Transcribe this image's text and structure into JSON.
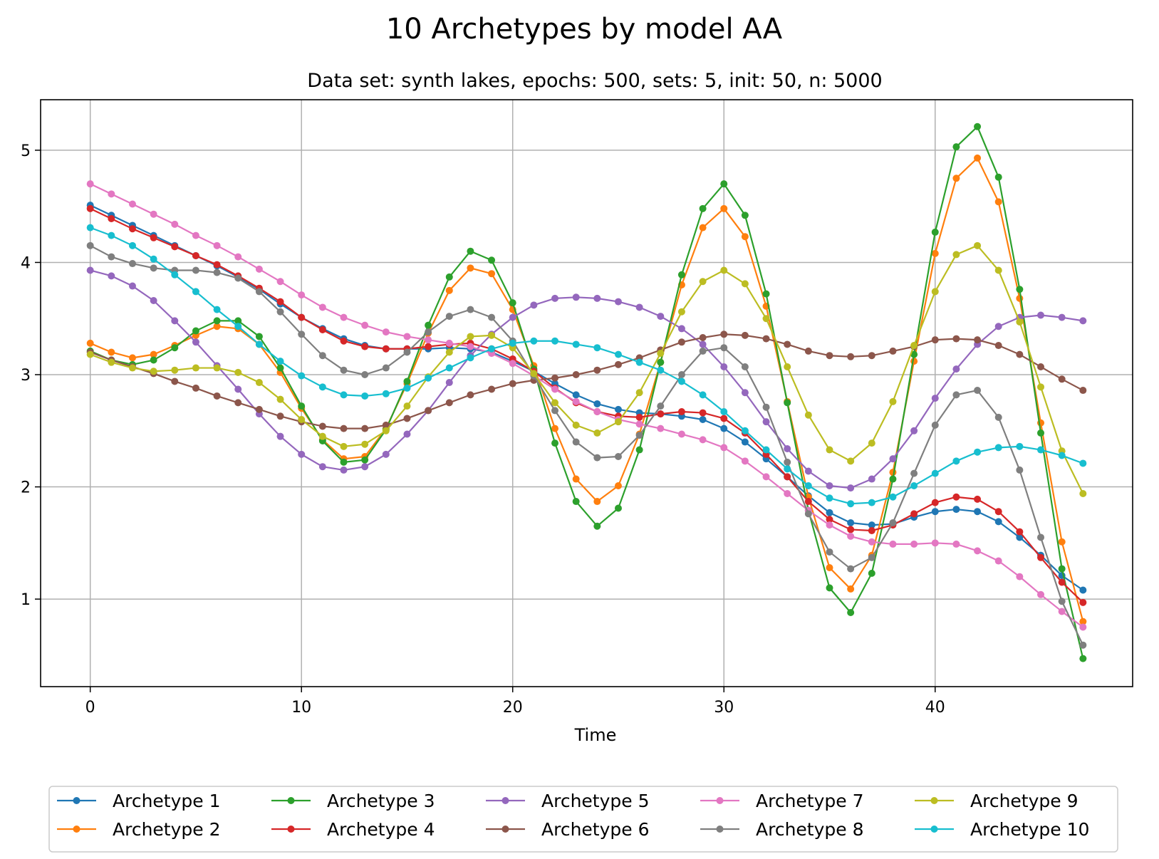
{
  "chart_data": {
    "type": "line",
    "title": "10 Archetypes by model AA",
    "subtitle": "Data set: synth lakes, epochs: 500, sets: 5, init: 50, n: 5000",
    "xlabel": "Time",
    "ylabel": "",
    "xlim": [
      -2.35,
      49.35
    ],
    "ylim": [
      0.22,
      5.45
    ],
    "xticks": [
      0,
      10,
      20,
      30,
      40
    ],
    "yticks": [
      1,
      2,
      3,
      4,
      5
    ],
    "grid": true,
    "legend": {
      "position": "bottom",
      "columns": 5
    },
    "x": [
      0,
      1,
      2,
      3,
      4,
      5,
      6,
      7,
      8,
      9,
      10,
      11,
      12,
      13,
      14,
      15,
      16,
      17,
      18,
      19,
      20,
      21,
      22,
      23,
      24,
      25,
      26,
      27,
      28,
      29,
      30,
      31,
      32,
      33,
      34,
      35,
      36,
      37,
      38,
      39,
      40,
      41,
      42,
      43,
      44,
      45,
      46,
      47
    ],
    "series": [
      {
        "name": "Archetype 1",
        "color": "#1f77b4",
        "values": [
          4.51,
          4.42,
          4.33,
          4.24,
          4.15,
          4.06,
          3.97,
          3.87,
          3.76,
          3.63,
          3.51,
          3.41,
          3.32,
          3.26,
          3.23,
          3.23,
          3.23,
          3.24,
          3.23,
          3.2,
          3.12,
          3.03,
          2.92,
          2.82,
          2.74,
          2.69,
          2.66,
          2.65,
          2.63,
          2.6,
          2.52,
          2.4,
          2.25,
          2.09,
          1.92,
          1.77,
          1.68,
          1.66,
          1.67,
          1.73,
          1.78,
          1.8,
          1.78,
          1.69,
          1.55,
          1.39,
          1.21,
          1.08
        ]
      },
      {
        "name": "Archetype 2",
        "color": "#ff7f0e",
        "values": [
          3.28,
          3.2,
          3.15,
          3.18,
          3.26,
          3.35,
          3.43,
          3.41,
          3.27,
          3.02,
          2.7,
          2.42,
          2.25,
          2.27,
          2.52,
          2.92,
          3.37,
          3.75,
          3.95,
          3.9,
          3.58,
          3.08,
          2.52,
          2.07,
          1.87,
          2.01,
          2.47,
          3.11,
          3.8,
          4.31,
          4.48,
          4.23,
          3.61,
          2.76,
          1.91,
          1.28,
          1.09,
          1.39,
          2.13,
          3.12,
          4.08,
          4.75,
          4.93,
          4.54,
          3.68,
          2.57,
          1.51,
          0.8
        ]
      },
      {
        "name": "Archetype 3",
        "color": "#2ca02c",
        "values": [
          3.21,
          3.13,
          3.09,
          3.13,
          3.24,
          3.39,
          3.48,
          3.48,
          3.34,
          3.06,
          2.72,
          2.41,
          2.22,
          2.24,
          2.51,
          2.94,
          3.44,
          3.87,
          4.1,
          4.02,
          3.64,
          3.05,
          2.39,
          1.87,
          1.65,
          1.81,
          2.33,
          3.11,
          3.89,
          4.48,
          4.7,
          4.42,
          3.72,
          2.75,
          1.79,
          1.1,
          0.88,
          1.23,
          2.07,
          3.18,
          4.27,
          5.03,
          5.21,
          4.76,
          3.76,
          2.48,
          1.27,
          0.47
        ]
      },
      {
        "name": "Archetype 4",
        "color": "#d62728",
        "values": [
          4.48,
          4.39,
          4.3,
          4.22,
          4.14,
          4.06,
          3.98,
          3.88,
          3.77,
          3.65,
          3.51,
          3.4,
          3.3,
          3.25,
          3.23,
          3.23,
          3.25,
          3.27,
          3.28,
          3.23,
          3.14,
          3.03,
          2.88,
          2.75,
          2.67,
          2.63,
          2.62,
          2.65,
          2.67,
          2.66,
          2.61,
          2.48,
          2.29,
          2.09,
          1.87,
          1.71,
          1.62,
          1.61,
          1.66,
          1.76,
          1.86,
          1.91,
          1.89,
          1.78,
          1.6,
          1.37,
          1.15,
          0.97
        ]
      },
      {
        "name": "Archetype 5",
        "color": "#9467bd",
        "values": [
          3.93,
          3.88,
          3.79,
          3.66,
          3.48,
          3.29,
          3.08,
          2.87,
          2.65,
          2.45,
          2.29,
          2.18,
          2.15,
          2.18,
          2.29,
          2.47,
          2.68,
          2.93,
          3.17,
          3.36,
          3.51,
          3.62,
          3.68,
          3.69,
          3.68,
          3.65,
          3.6,
          3.52,
          3.41,
          3.27,
          3.07,
          2.84,
          2.58,
          2.34,
          2.14,
          2.01,
          1.99,
          2.07,
          2.25,
          2.5,
          2.79,
          3.05,
          3.27,
          3.43,
          3.51,
          3.53,
          3.51,
          3.48
        ]
      },
      {
        "name": "Archetype 6",
        "color": "#8c564b",
        "values": [
          3.2,
          3.13,
          3.07,
          3.01,
          2.94,
          2.88,
          2.81,
          2.75,
          2.69,
          2.63,
          2.58,
          2.54,
          2.52,
          2.52,
          2.55,
          2.61,
          2.68,
          2.75,
          2.82,
          2.87,
          2.92,
          2.95,
          2.97,
          3.0,
          3.04,
          3.09,
          3.15,
          3.22,
          3.29,
          3.33,
          3.36,
          3.35,
          3.32,
          3.27,
          3.21,
          3.17,
          3.16,
          3.17,
          3.21,
          3.25,
          3.31,
          3.32,
          3.31,
          3.26,
          3.18,
          3.07,
          2.96,
          2.86
        ]
      },
      {
        "name": "Archetype 7",
        "color": "#e377c2",
        "values": [
          4.7,
          4.61,
          4.52,
          4.43,
          4.34,
          4.24,
          4.15,
          4.05,
          3.94,
          3.83,
          3.71,
          3.6,
          3.51,
          3.44,
          3.38,
          3.34,
          3.31,
          3.28,
          3.25,
          3.19,
          3.1,
          2.99,
          2.87,
          2.76,
          2.67,
          2.6,
          2.56,
          2.52,
          2.47,
          2.42,
          2.35,
          2.23,
          2.09,
          1.94,
          1.79,
          1.66,
          1.56,
          1.51,
          1.49,
          1.49,
          1.5,
          1.49,
          1.43,
          1.34,
          1.2,
          1.04,
          0.89,
          0.75
        ]
      },
      {
        "name": "Archetype 8",
        "color": "#7f7f7f",
        "values": [
          4.15,
          4.05,
          3.99,
          3.95,
          3.93,
          3.93,
          3.91,
          3.86,
          3.74,
          3.56,
          3.36,
          3.17,
          3.04,
          3.0,
          3.06,
          3.2,
          3.38,
          3.52,
          3.58,
          3.51,
          3.3,
          2.99,
          2.68,
          2.4,
          2.26,
          2.27,
          2.46,
          2.72,
          3.0,
          3.21,
          3.24,
          3.07,
          2.71,
          2.22,
          1.76,
          1.42,
          1.27,
          1.37,
          1.68,
          2.12,
          2.55,
          2.82,
          2.86,
          2.62,
          2.15,
          1.55,
          0.98,
          0.59
        ]
      },
      {
        "name": "Archetype 9",
        "color": "#bcbd22",
        "values": [
          3.18,
          3.11,
          3.06,
          3.03,
          3.04,
          3.06,
          3.06,
          3.02,
          2.93,
          2.78,
          2.6,
          2.45,
          2.36,
          2.38,
          2.5,
          2.72,
          2.98,
          3.2,
          3.34,
          3.35,
          3.24,
          3.01,
          2.75,
          2.55,
          2.48,
          2.58,
          2.84,
          3.19,
          3.56,
          3.83,
          3.93,
          3.81,
          3.5,
          3.07,
          2.64,
          2.33,
          2.23,
          2.39,
          2.76,
          3.26,
          3.74,
          4.07,
          4.15,
          3.93,
          3.47,
          2.89,
          2.32,
          1.94
        ]
      },
      {
        "name": "Archetype 10",
        "color": "#17becf",
        "values": [
          4.31,
          4.24,
          4.15,
          4.03,
          3.89,
          3.74,
          3.58,
          3.43,
          3.27,
          3.12,
          2.99,
          2.89,
          2.82,
          2.81,
          2.83,
          2.88,
          2.97,
          3.06,
          3.15,
          3.23,
          3.28,
          3.3,
          3.3,
          3.27,
          3.24,
          3.18,
          3.11,
          3.04,
          2.94,
          2.82,
          2.67,
          2.5,
          2.33,
          2.16,
          2.01,
          1.9,
          1.85,
          1.86,
          1.91,
          2.01,
          2.12,
          2.23,
          2.31,
          2.35,
          2.36,
          2.33,
          2.28,
          2.21
        ]
      }
    ]
  }
}
